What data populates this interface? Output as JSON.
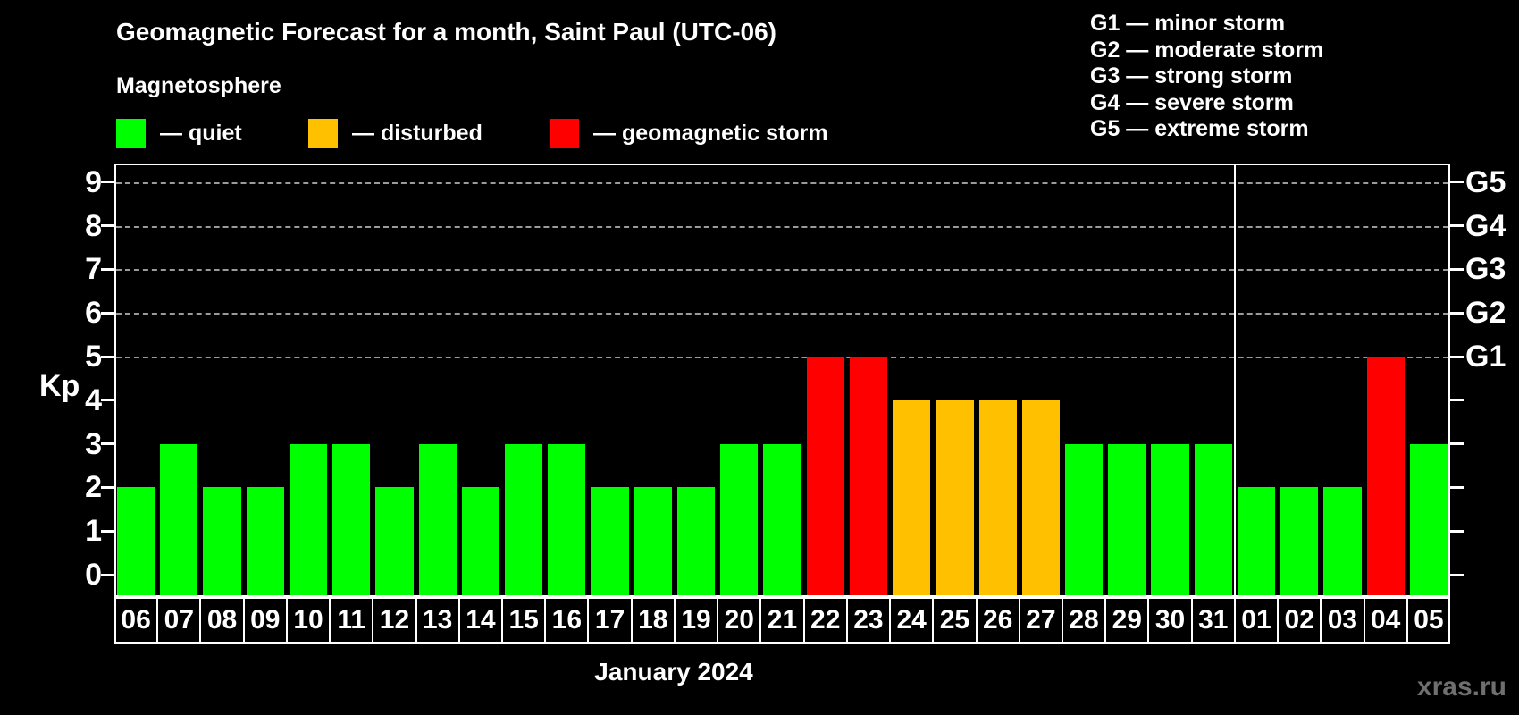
{
  "title": "Geomagnetic Forecast for a month, Saint Paul (UTC-06)",
  "subtitle": "Magnetosphere",
  "legend": {
    "dash": "—",
    "items": [
      {
        "label": "quiet",
        "color": "#00ff00"
      },
      {
        "label": "disturbed",
        "color": "#ffc000"
      },
      {
        "label": "geomagnetic storm",
        "color": "#ff0000"
      }
    ]
  },
  "g_legend": {
    "items": [
      {
        "text": "G1 — minor storm"
      },
      {
        "text": "G2 — moderate storm"
      },
      {
        "text": "G3 — strong storm"
      },
      {
        "text": "G4 — severe storm"
      },
      {
        "text": "G5 — extreme storm"
      }
    ]
  },
  "watermark": "xras.ru",
  "chart_data": {
    "type": "bar",
    "title": "Geomagnetic Forecast for a month, Saint Paul (UTC-06)",
    "xlabel": "January 2024",
    "ylabel": "Kp",
    "ylim": [
      0,
      9.4
    ],
    "yticks": [
      "0",
      "1",
      "2",
      "3",
      "4",
      "5",
      "6",
      "7",
      "8",
      "9"
    ],
    "grid": "horizontal dashed lines at Kp 5-9 only",
    "legend_position": "top-left colors, top-right G-scale",
    "gridline_kp": [
      5,
      6,
      7,
      8,
      9
    ],
    "right_axis": [
      {
        "kp": 5,
        "label": "G1"
      },
      {
        "kp": 6,
        "label": "G2"
      },
      {
        "kp": 7,
        "label": "G3"
      },
      {
        "kp": 8,
        "label": "G4"
      },
      {
        "kp": 9,
        "label": "G5"
      }
    ],
    "categories": [
      "06",
      "07",
      "08",
      "09",
      "10",
      "11",
      "12",
      "13",
      "14",
      "15",
      "16",
      "17",
      "18",
      "19",
      "20",
      "21",
      "22",
      "23",
      "24",
      "25",
      "26",
      "27",
      "28",
      "29",
      "30",
      "31",
      "01",
      "02",
      "03",
      "04",
      "05"
    ],
    "values": [
      2,
      3,
      2,
      2,
      3,
      3,
      2,
      3,
      2,
      3,
      3,
      2,
      2,
      2,
      3,
      3,
      5,
      5,
      4,
      4,
      4,
      4,
      3,
      3,
      3,
      3,
      2,
      2,
      2,
      5,
      3
    ],
    "statuses": [
      "quiet",
      "quiet",
      "quiet",
      "quiet",
      "quiet",
      "quiet",
      "quiet",
      "quiet",
      "quiet",
      "quiet",
      "quiet",
      "quiet",
      "quiet",
      "quiet",
      "quiet",
      "quiet",
      "storm",
      "storm",
      "disturbed",
      "disturbed",
      "disturbed",
      "disturbed",
      "quiet",
      "quiet",
      "quiet",
      "quiet",
      "quiet",
      "quiet",
      "quiet",
      "storm",
      "quiet"
    ],
    "status_colors": {
      "quiet": "#00ff00",
      "disturbed": "#ffc000",
      "storm": "#ff0000"
    },
    "month_separator_after_index": 25
  }
}
